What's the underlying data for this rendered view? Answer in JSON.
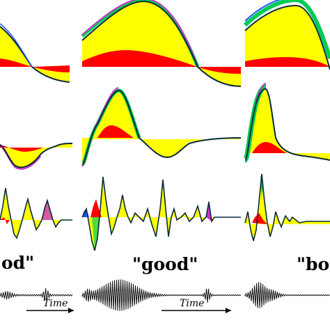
{
  "labels": {
    "word_left": "od\"",
    "word_center": "\"good\"",
    "word_right": "\"boo",
    "time_left": "Time",
    "time_center": "Time"
  },
  "colors": {
    "stroke": "#0a2a3a",
    "layer_yellow": "#ffff00",
    "layer_red": "#ff0000",
    "layer_green": "#00cc55",
    "layer_blue": "#2255ff",
    "layer_magenta": "#cc33cc"
  },
  "panels": [
    {
      "column": "left",
      "row": 1,
      "waveform": "slow-descending"
    },
    {
      "column": "center",
      "row": 1,
      "waveform": "broad-peak"
    },
    {
      "column": "right",
      "row": 1,
      "waveform": "high-plateau-descent"
    },
    {
      "column": "left",
      "row": 2,
      "waveform": "negative-dip"
    },
    {
      "column": "center",
      "row": 2,
      "waveform": "sharp-peak"
    },
    {
      "column": "right",
      "row": 2,
      "waveform": "early-sharp-peak"
    },
    {
      "column": "left",
      "row": 3,
      "waveform": "oscillation"
    },
    {
      "column": "center",
      "row": 3,
      "waveform": "oscillation"
    },
    {
      "column": "right",
      "row": 3,
      "waveform": "oscillation"
    }
  ]
}
